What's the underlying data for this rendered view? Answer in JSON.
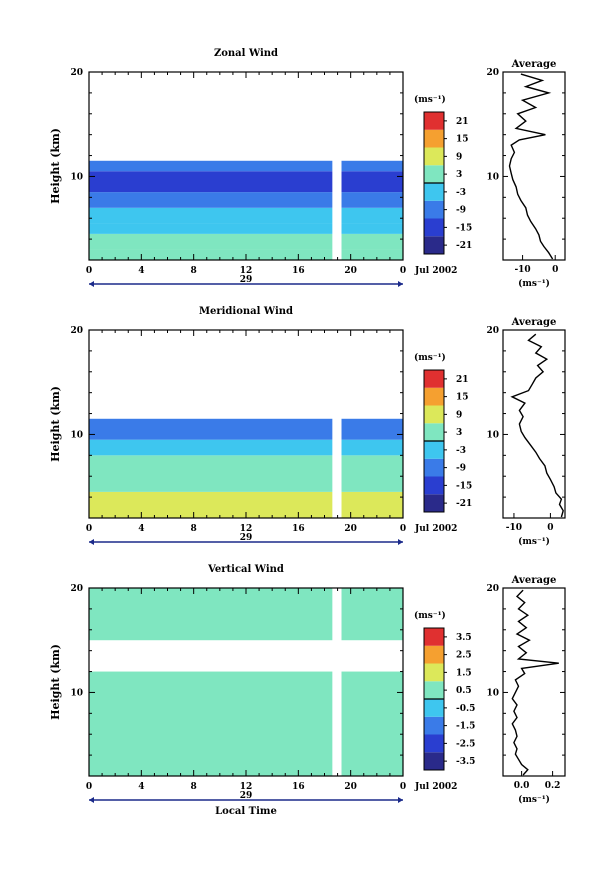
{
  "chart_data": [
    {
      "type": "heatmap",
      "title": "Zonal Wind",
      "ylabel": "Height (km)",
      "y_ticks": [
        "10",
        "20"
      ],
      "ylim": [
        2,
        20
      ],
      "x_ticks": [
        "0",
        "4",
        "8",
        "12",
        "16",
        "20",
        "0"
      ],
      "date_label": "29",
      "month_label": "Jul 2002",
      "xlim": [
        0,
        24
      ],
      "colorbar": {
        "unit_label": "(ms⁻¹)",
        "ticks": [
          "21",
          "15",
          "9",
          "3",
          "-3",
          "-9",
          "-15",
          "-21"
        ],
        "range": [
          -24,
          24
        ],
        "zero_line": true
      },
      "data_gap": [
        18.6,
        19.3
      ],
      "layers": [
        {
          "h0": 2.0,
          "h1": 3.0,
          "value": 3
        },
        {
          "h0": 3.0,
          "h1": 4.5,
          "value": 0
        },
        {
          "h0": 4.5,
          "h1": 5.5,
          "value": -3
        },
        {
          "h0": 5.5,
          "h1": 7.0,
          "value": -6
        },
        {
          "h0": 7.0,
          "h1": 8.5,
          "value": -9
        },
        {
          "h0": 8.5,
          "h1": 10.5,
          "value": -15
        },
        {
          "h0": 10.5,
          "h1": 11.5,
          "value": -9
        }
      ],
      "average": {
        "title": "Average",
        "xlabel": "(ms⁻¹)",
        "x_ticks": [
          "-10",
          "0"
        ],
        "xlim": [
          -16,
          3
        ],
        "ylim": [
          2,
          20
        ],
        "y_ticks": [
          "10",
          "20"
        ],
        "profile": [
          {
            "h": 2.1,
            "v": -0.8
          },
          {
            "h": 2.7,
            "v": -2.0
          },
          {
            "h": 3.3,
            "v": -3.5
          },
          {
            "h": 3.8,
            "v": -4.5
          },
          {
            "h": 4.4,
            "v": -5.0
          },
          {
            "h": 5.0,
            "v": -6.0
          },
          {
            "h": 5.7,
            "v": -7.5
          },
          {
            "h": 6.3,
            "v": -8.5
          },
          {
            "h": 7.0,
            "v": -9.0
          },
          {
            "h": 7.7,
            "v": -10.5
          },
          {
            "h": 8.3,
            "v": -11.5
          },
          {
            "h": 9.0,
            "v": -12.0
          },
          {
            "h": 9.7,
            "v": -13.0
          },
          {
            "h": 10.3,
            "v": -13.5
          },
          {
            "h": 11.0,
            "v": -14.0
          },
          {
            "h": 11.7,
            "v": -13.5
          },
          {
            "h": 12.3,
            "v": -12.5
          },
          {
            "h": 13.0,
            "v": -13.5
          },
          {
            "h": 13.5,
            "v": -11.0
          },
          {
            "h": 14.0,
            "v": -3.0
          },
          {
            "h": 14.6,
            "v": -12.0
          },
          {
            "h": 15.3,
            "v": -9.0
          },
          {
            "h": 16.0,
            "v": -11.5
          },
          {
            "h": 16.6,
            "v": -6.0
          },
          {
            "h": 17.3,
            "v": -10.0
          },
          {
            "h": 18.0,
            "v": -2.0
          },
          {
            "h": 18.6,
            "v": -9.0
          },
          {
            "h": 19.2,
            "v": -4.0
          },
          {
            "h": 19.8,
            "v": -10.5
          }
        ]
      }
    },
    {
      "type": "heatmap",
      "title": "Meridional Wind",
      "ylabel": "Height (km)",
      "y_ticks": [
        "10",
        "20"
      ],
      "ylim": [
        2,
        20
      ],
      "x_ticks": [
        "0",
        "4",
        "8",
        "12",
        "16",
        "20",
        "0"
      ],
      "date_label": "29",
      "month_label": "Jul 2002",
      "xlim": [
        0,
        24
      ],
      "colorbar": {
        "unit_label": "(ms⁻¹)",
        "ticks": [
          "21",
          "15",
          "9",
          "3",
          "-3",
          "-9",
          "-15",
          "-21"
        ],
        "range": [
          -24,
          24
        ],
        "zero_line": true
      },
      "data_gap": [
        18.6,
        19.3
      ],
      "layers": [
        {
          "h0": 2.0,
          "h1": 4.5,
          "value": 7
        },
        {
          "h0": 4.5,
          "h1": 6.5,
          "value": 4
        },
        {
          "h0": 6.5,
          "h1": 8.0,
          "value": 1
        },
        {
          "h0": 8.0,
          "h1": 9.5,
          "value": -3
        },
        {
          "h0": 9.5,
          "h1": 11.5,
          "value": -9
        }
      ],
      "average": {
        "title": "Average",
        "xlabel": "(ms⁻¹)",
        "x_ticks": [
          "-10",
          "0"
        ],
        "xlim": [
          -13,
          4
        ],
        "ylim": [
          2,
          20
        ],
        "y_ticks": [
          "10",
          "20"
        ],
        "profile": [
          {
            "h": 2.1,
            "v": 3.0
          },
          {
            "h": 2.7,
            "v": 3.5
          },
          {
            "h": 3.3,
            "v": 2.5
          },
          {
            "h": 3.8,
            "v": 3.0
          },
          {
            "h": 4.4,
            "v": 1.5
          },
          {
            "h": 5.0,
            "v": 1.0
          },
          {
            "h": 5.7,
            "v": 0.0
          },
          {
            "h": 6.3,
            "v": -1.0
          },
          {
            "h": 7.0,
            "v": -1.5
          },
          {
            "h": 7.7,
            "v": -3.0
          },
          {
            "h": 8.3,
            "v": -4.0
          },
          {
            "h": 9.0,
            "v": -5.5
          },
          {
            "h": 9.7,
            "v": -7.0
          },
          {
            "h": 10.3,
            "v": -8.0
          },
          {
            "h": 11.0,
            "v": -8.5
          },
          {
            "h": 11.7,
            "v": -7.5
          },
          {
            "h": 12.3,
            "v": -8.5
          },
          {
            "h": 13.0,
            "v": -7.0
          },
          {
            "h": 13.6,
            "v": -10.5
          },
          {
            "h": 14.2,
            "v": -6.0
          },
          {
            "h": 14.8,
            "v": -5.0
          },
          {
            "h": 15.4,
            "v": -4.0
          },
          {
            "h": 16.0,
            "v": -2.0
          },
          {
            "h": 16.6,
            "v": -3.5
          },
          {
            "h": 17.2,
            "v": -1.0
          },
          {
            "h": 17.8,
            "v": -4.0
          },
          {
            "h": 18.4,
            "v": -2.5
          },
          {
            "h": 19.0,
            "v": -6.0
          },
          {
            "h": 19.6,
            "v": -4.0
          }
        ]
      }
    },
    {
      "type": "heatmap",
      "title": "Vertical Wind",
      "ylabel": "Height (km)",
      "y_ticks": [
        "10",
        "20"
      ],
      "ylim": [
        2,
        20
      ],
      "x_ticks": [
        "0",
        "4",
        "8",
        "12",
        "16",
        "20",
        "0"
      ],
      "date_label": "29",
      "month_label": "Jul 2002",
      "xlabel": "Local Time",
      "xlim": [
        0,
        24
      ],
      "colorbar": {
        "unit_label": "(ms⁻¹)",
        "ticks": [
          "3.5",
          "2.5",
          "1.5",
          "0.5",
          "-0.5",
          "-1.5",
          "-2.5",
          "-3.5"
        ],
        "range": [
          -4,
          4
        ],
        "zero_line": true
      },
      "data_gap": [
        18.6,
        19.3
      ],
      "layers": [
        {
          "h0": 2.0,
          "h1": 12.0,
          "value": 0.3
        },
        {
          "h0": 15.0,
          "h1": 20.0,
          "value": 0.4
        }
      ],
      "average": {
        "title": "Average",
        "xlabel": "(ms⁻¹)",
        "x_ticks": [
          "0.0",
          "0.2"
        ],
        "xlim": [
          -0.12,
          0.28
        ],
        "ylim": [
          2,
          20
        ],
        "y_ticks": [
          "10",
          "20"
        ],
        "profile": [
          {
            "h": 2.1,
            "v": 0.01
          },
          {
            "h": 2.6,
            "v": 0.04
          },
          {
            "h": 3.1,
            "v": 0.0
          },
          {
            "h": 3.6,
            "v": -0.02
          },
          {
            "h": 4.1,
            "v": -0.04
          },
          {
            "h": 4.6,
            "v": -0.03
          },
          {
            "h": 5.2,
            "v": -0.05
          },
          {
            "h": 5.8,
            "v": -0.03
          },
          {
            "h": 6.4,
            "v": -0.04
          },
          {
            "h": 7.0,
            "v": -0.06
          },
          {
            "h": 7.6,
            "v": -0.03
          },
          {
            "h": 8.2,
            "v": -0.05
          },
          {
            "h": 8.8,
            "v": -0.03
          },
          {
            "h": 9.4,
            "v": -0.06
          },
          {
            "h": 10.0,
            "v": -0.04
          },
          {
            "h": 10.6,
            "v": -0.02
          },
          {
            "h": 11.2,
            "v": -0.04
          },
          {
            "h": 11.8,
            "v": 0.02
          },
          {
            "h": 12.3,
            "v": 0.0
          },
          {
            "h": 12.8,
            "v": 0.24
          },
          {
            "h": 13.2,
            "v": -0.02
          },
          {
            "h": 13.8,
            "v": 0.03
          },
          {
            "h": 14.4,
            "v": -0.02
          },
          {
            "h": 15.0,
            "v": 0.05
          },
          {
            "h": 15.6,
            "v": -0.03
          },
          {
            "h": 16.2,
            "v": 0.03
          },
          {
            "h": 16.8,
            "v": -0.02
          },
          {
            "h": 17.4,
            "v": 0.04
          },
          {
            "h": 18.0,
            "v": -0.02
          },
          {
            "h": 18.6,
            "v": 0.02
          },
          {
            "h": 19.2,
            "v": -0.03
          },
          {
            "h": 19.8,
            "v": 0.01
          }
        ]
      }
    }
  ]
}
